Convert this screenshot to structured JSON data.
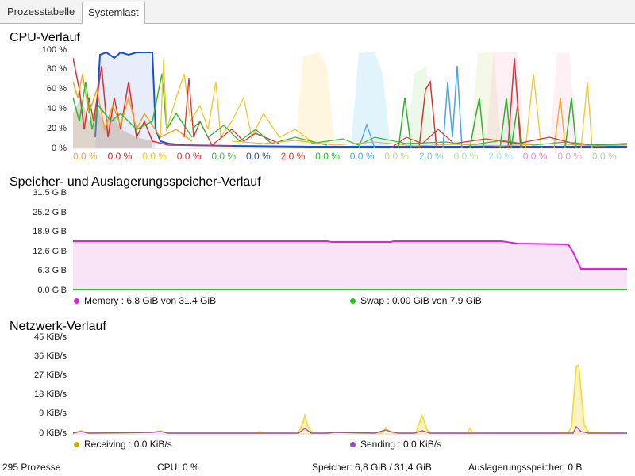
{
  "tabs": [
    {
      "label": "Prozesstabelle"
    },
    {
      "label": "Systemlast"
    }
  ],
  "cpu": {
    "title": "CPU-Verlauf",
    "yticks": [
      "100 %",
      "80 %",
      "60 %",
      "40 %",
      "20 %",
      "0 %"
    ],
    "core_labels": [
      "0.0 %",
      "0.0 %",
      "0.0 %",
      "0.0 %",
      "0.0 %",
      "0.0 %",
      "2.0 %",
      "0.0 %",
      "0.0 %",
      "0.0 %",
      "2.0 %",
      "0.0 %",
      "2.0 %",
      "0.0 %",
      "0.0 %",
      "0.0 %"
    ],
    "core_colors": [
      "#f5a623",
      "#e02020",
      "#f7c52a",
      "#e03030",
      "#2fc02f",
      "#1650d8",
      "#e03030",
      "#2cb82c",
      "#4aa4e6",
      "#c8d47a",
      "#6cc7d8",
      "#b6e6a4",
      "#a9dff3",
      "#ef86c6",
      "#f59db5",
      "#b8c8b0"
    ]
  },
  "memory": {
    "title": "Speicher- und Auslagerungsspeicher-Verlauf",
    "yticks": [
      "31.5 GiB",
      "25.2 GiB",
      "18.9 GiB",
      "12.6 GiB",
      "6.3 GiB",
      "0.0 GiB"
    ],
    "legend_memory": "Memory : 6.8 GiB von 31.4 GiB",
    "legend_swap": "Swap : 0.00 GiB von 7.9 GiB",
    "memory_color": "#e020e0",
    "swap_color": "#1ec81e"
  },
  "network": {
    "title": "Netzwerk-Verlauf",
    "yticks": [
      "45 KiB/s",
      "36 KiB/s",
      "27 KiB/s",
      "18 KiB/s",
      "9 KiB/s",
      "0 KiB/s"
    ],
    "legend_receiving": "Receiving : 0.0 KiB/s",
    "legend_sending": "Sending : 0.0 KiB/s",
    "receiving_color": "#c8a800",
    "sending_color": "#9a4fbf"
  },
  "statusbar": {
    "processes": "295 Prozesse",
    "cpu": "CPU: 0 %",
    "memory": "Speicher: 6,8 GiB / 31,4 GiB",
    "swap": "Auslagerungsspeicher: 0 B"
  }
}
